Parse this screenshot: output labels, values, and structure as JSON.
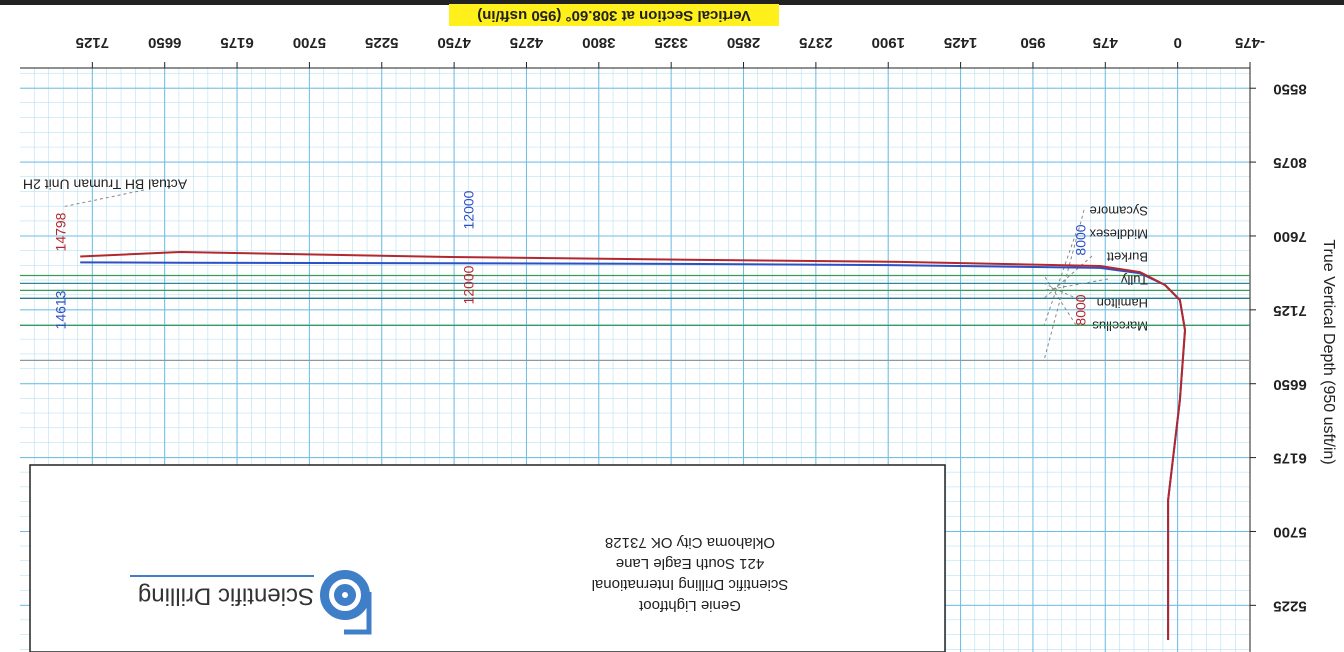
{
  "chart_data": {
    "type": "line",
    "xlabel": "Vertical Section at 308.60° (950 usft/in)",
    "ylabel": "True Vertical Depth (950 usft/in)",
    "xlim": [
      -475,
      7600
    ],
    "ylim": [
      4925,
      8680
    ],
    "xticks": [
      -475,
      0,
      475,
      950,
      1425,
      1900,
      2375,
      2850,
      3325,
      3800,
      4275,
      4750,
      5225,
      5700,
      6175,
      6650,
      7125
    ],
    "yticks": [
      5225,
      5700,
      6175,
      6650,
      7125,
      7600,
      8075,
      8550
    ],
    "y_inverted": true,
    "grid": true,
    "series": [
      {
        "color": "#b3282d",
        "x": [
          63,
          63,
          -15,
          -48,
          -15,
          83,
          247,
          510,
          1822,
          3135,
          4776,
          6549,
          7205
        ],
        "values": [
          5002,
          5902,
          6545,
          6995,
          7188,
          7285,
          7368,
          7407,
          7433,
          7446,
          7465,
          7497,
          7468
        ]
      },
      {
        "color": "#2f4fc4",
        "x": [
          63,
          63,
          -15,
          -48,
          -15,
          83,
          247,
          510,
          1822,
          3135,
          4776,
          6549,
          7205
        ],
        "values": [
          5002,
          5902,
          6545,
          6995,
          7188,
          7285,
          7360,
          7395,
          7412,
          7420,
          7425,
          7428,
          7430
        ]
      }
    ],
    "formations": [
      {
        "name": "Marcellus",
        "tvd": 7346,
        "color": "#3a9a5a"
      },
      {
        "name": "Hamilton",
        "tvd": 7295,
        "color": "#2a8a9a"
      },
      {
        "name": "Tully",
        "tvd": 7250,
        "color": "#3a9a5a"
      },
      {
        "name": "Burkett",
        "tvd": 7199,
        "color": "#2a7a8a"
      },
      {
        "name": "Middlesex",
        "tvd": 7025,
        "color": "#3a9a5a"
      },
      {
        "name": "Sycamore",
        "tvd": 6800,
        "color": "#8a9aa0"
      }
    ],
    "annotations": [
      "8000",
      "8000",
      "12000",
      "12000",
      "14798",
      "14613",
      "Actual BH Truman Unit 2H"
    ]
  },
  "title_block": {
    "lines": [
      "Genie Lightfoot",
      "Scientific Drilling International",
      "421 South Eagle Lane",
      "Oklahoma City OK 73128"
    ],
    "logo_text": "Scientific Drilling"
  }
}
